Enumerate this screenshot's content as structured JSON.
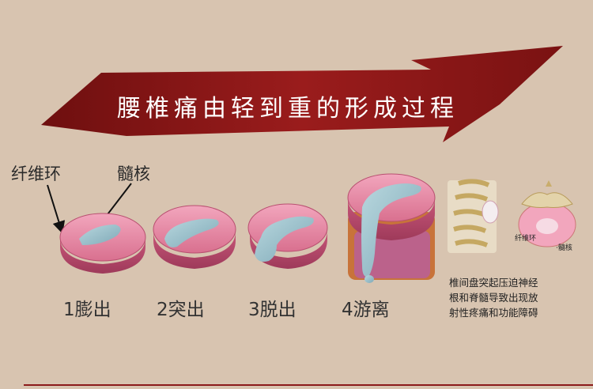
{
  "title": "腰椎痛由轻到重的形成过程",
  "labels": {
    "annulus": "纤维环",
    "nucleus": "髓核"
  },
  "stages": [
    "1膨出",
    "2突出",
    "3脱出",
    "4游离"
  ],
  "side_figure": {
    "small_labels": [
      "纤维环",
      "·髓核"
    ],
    "description_lines": [
      "椎间盘突起压迫神经",
      "根和脊髓导致出现放",
      "射性疼痛和功能障碍"
    ]
  },
  "colors": {
    "banner": "#8b1a1a",
    "disc": "#d9708f",
    "nucleus": "#8fb7c4",
    "background": "#d8c4b0"
  }
}
